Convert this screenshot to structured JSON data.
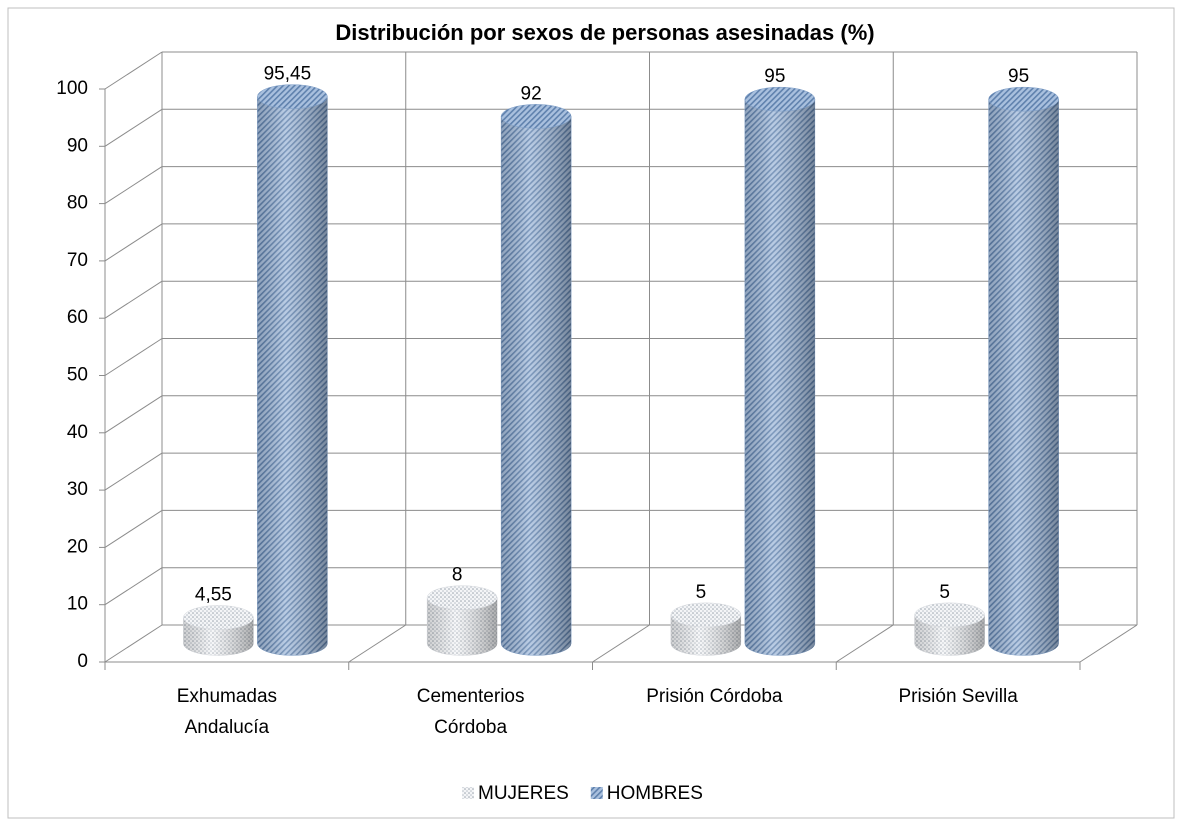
{
  "chart_data": {
    "type": "bar3d",
    "title": "Distribución por sexos de personas asesinadas (%)",
    "categories": [
      [
        "Exhumadas",
        "Andalucía"
      ],
      [
        "Cementerios",
        "Córdoba"
      ],
      [
        "Prisión Córdoba"
      ],
      [
        "Prisión Sevilla"
      ]
    ],
    "series": [
      {
        "name": "MUJERES",
        "color": "#d6d9de",
        "values": [
          4.55,
          8,
          5,
          5
        ],
        "value_labels": [
          "4,55",
          "8",
          "5",
          "5"
        ]
      },
      {
        "name": "HOMBRES",
        "color": "#7f9fc8",
        "values": [
          95.45,
          92,
          95,
          95
        ],
        "value_labels": [
          "95,45",
          "92",
          "95",
          "95"
        ]
      }
    ],
    "ylim": [
      0,
      100
    ],
    "yticks": [
      0,
      10,
      20,
      30,
      40,
      50,
      60,
      70,
      80,
      90,
      100
    ],
    "grid": true,
    "legend": "bottom"
  }
}
